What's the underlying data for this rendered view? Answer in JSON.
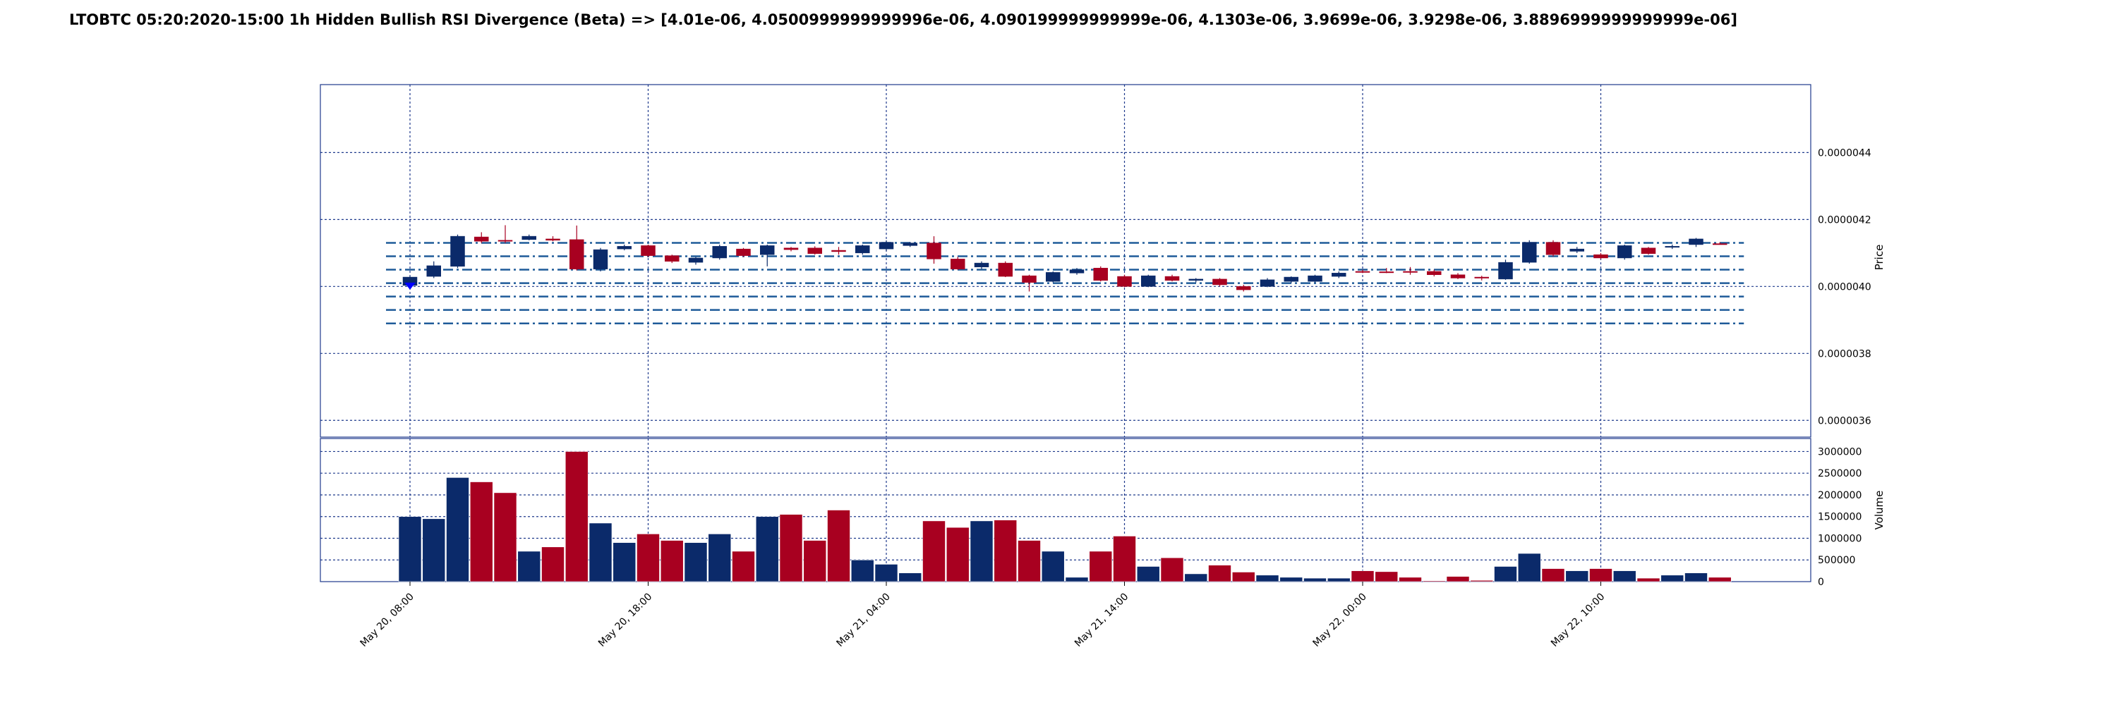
{
  "chart_data": {
    "title": "LTOBTC 05:20:2020-15:00 1h Hidden Bullish RSI Divergence (Beta) => [4.01e-06, 4.0500999999999996e-06, 4.090199999999999e-06, 4.1303e-06, 3.9699e-06, 3.9298e-06, 3.8896999999999999e-06]",
    "type": "candlestick",
    "interval": "1h",
    "colors": {
      "up": "#0b2a6a",
      "down": "#a80020",
      "grid": "#1f3a8c",
      "level_line": "#1f5b99",
      "marker": "#0000ff"
    },
    "price_panel": {
      "ylabel": "Price",
      "ylim": [
        3.55e-06,
        4.603e-06
      ],
      "ticks": [
        "0.0000036",
        "0.0000038",
        "0.0000040",
        "0.0000042",
        "0.0000044"
      ],
      "tick_values": [
        3.6e-06,
        3.8e-06,
        4e-06,
        4.2e-06,
        4.4e-06
      ],
      "level_lines": [
        4.01e-06,
        4.0501e-06,
        4.0902e-06,
        4.1303e-06,
        3.9699e-06,
        3.9298e-06,
        3.8897e-06
      ],
      "marker": {
        "index": 0,
        "price": 4.003e-06
      }
    },
    "volume_panel": {
      "ylabel": "Volume",
      "ylim": [
        0,
        3300000
      ],
      "ticks": [
        "0",
        "500000",
        "1000000",
        "1500000",
        "2000000",
        "2500000",
        "3000000"
      ],
      "tick_values": [
        0,
        500000,
        1000000,
        1500000,
        2000000,
        2500000,
        3000000
      ]
    },
    "x_ticks": [
      {
        "index": 0,
        "label": "May 20, 08:00"
      },
      {
        "index": 10,
        "label": "May 20, 18:00"
      },
      {
        "index": 20,
        "label": "May 21, 04:00"
      },
      {
        "index": 30,
        "label": "May 21, 14:00"
      },
      {
        "index": 40,
        "label": "May 22, 00:00"
      },
      {
        "index": 50,
        "label": "May 22, 10:00"
      }
    ],
    "candles": [
      {
        "o": 4.003e-06,
        "h": 4.03e-06,
        "l": 3.998e-06,
        "c": 4.028e-06,
        "v": 1500000
      },
      {
        "o": 4.03e-06,
        "h": 4.075e-06,
        "l": 4.025e-06,
        "c": 4.062e-06,
        "v": 1450000
      },
      {
        "o": 4.06e-06,
        "h": 4.155e-06,
        "l": 4.055e-06,
        "c": 4.15e-06,
        "v": 2400000
      },
      {
        "o": 4.148e-06,
        "h": 4.162e-06,
        "l": 4.13e-06,
        "c": 4.135e-06,
        "v": 2300000
      },
      {
        "o": 4.138e-06,
        "h": 4.183e-06,
        "l": 4.13e-06,
        "c": 4.136e-06,
        "v": 2050000
      },
      {
        "o": 4.14e-06,
        "h": 4.155e-06,
        "l": 4.138e-06,
        "c": 4.15e-06,
        "v": 700000
      },
      {
        "o": 4.142e-06,
        "h": 4.15e-06,
        "l": 4.135e-06,
        "c": 4.138e-06,
        "v": 800000
      },
      {
        "o": 4.14e-06,
        "h": 4.182e-06,
        "l": 4.048e-06,
        "c": 4.052e-06,
        "v": 3000000
      },
      {
        "o": 4.052e-06,
        "h": 4.115e-06,
        "l": 4.045e-06,
        "c": 4.11e-06,
        "v": 1350000
      },
      {
        "o": 4.112e-06,
        "h": 4.125e-06,
        "l": 4.108e-06,
        "c": 4.12e-06,
        "v": 900000
      },
      {
        "o": 4.122e-06,
        "h": 4.125e-06,
        "l": 4.088e-06,
        "c": 4.092e-06,
        "v": 1100000
      },
      {
        "o": 4.092e-06,
        "h": 4.095e-06,
        "l": 4.07e-06,
        "c": 4.075e-06,
        "v": 950000
      },
      {
        "o": 4.072e-06,
        "h": 4.088e-06,
        "l": 4.065e-06,
        "c": 4.085e-06,
        "v": 900000
      },
      {
        "o": 4.085e-06,
        "h": 4.125e-06,
        "l": 4.08e-06,
        "c": 4.12e-06,
        "v": 1100000
      },
      {
        "o": 4.112e-06,
        "h": 4.115e-06,
        "l": 4.088e-06,
        "c": 4.092e-06,
        "v": 700000
      },
      {
        "o": 4.095e-06,
        "h": 4.125e-06,
        "l": 4.06e-06,
        "c": 4.122e-06,
        "v": 1500000
      },
      {
        "o": 4.115e-06,
        "h": 4.118e-06,
        "l": 4.105e-06,
        "c": 4.11e-06,
        "v": 1550000
      },
      {
        "o": 4.115e-06,
        "h": 4.12e-06,
        "l": 4.095e-06,
        "c": 4.098e-06,
        "v": 950000
      },
      {
        "o": 4.108e-06,
        "h": 4.118e-06,
        "l": 4.095e-06,
        "c": 4.104e-06,
        "v": 1650000
      },
      {
        "o": 4.1e-06,
        "h": 4.125e-06,
        "l": 4.095e-06,
        "c": 4.122e-06,
        "v": 500000
      },
      {
        "o": 4.112e-06,
        "h": 4.138e-06,
        "l": 4.105e-06,
        "c": 4.132e-06,
        "v": 400000
      },
      {
        "o": 4.122e-06,
        "h": 4.133e-06,
        "l": 4.118e-06,
        "c": 4.13e-06,
        "v": 200000
      },
      {
        "o": 4.13e-06,
        "h": 4.15e-06,
        "l": 4.068e-06,
        "c": 4.082e-06,
        "v": 1400000
      },
      {
        "o": 4.082e-06,
        "h": 4.088e-06,
        "l": 4.05e-06,
        "c": 4.052e-06,
        "v": 1250000
      },
      {
        "o": 4.058e-06,
        "h": 4.075e-06,
        "l": 4.052e-06,
        "c": 4.07e-06,
        "v": 1400000
      },
      {
        "o": 4.07e-06,
        "h": 4.075e-06,
        "l": 4.028e-06,
        "c": 4.03e-06,
        "v": 1420000
      },
      {
        "o": 4.032e-06,
        "h": 4.035e-06,
        "l": 3.985e-06,
        "c": 4.012e-06,
        "v": 950000
      },
      {
        "o": 4.015e-06,
        "h": 4.045e-06,
        "l": 4.012e-06,
        "c": 4.042e-06,
        "v": 700000
      },
      {
        "o": 4.04e-06,
        "h": 4.055e-06,
        "l": 4.035e-06,
        "c": 4.05e-06,
        "v": 100000
      },
      {
        "o": 4.055e-06,
        "h": 4.06e-06,
        "l": 4.015e-06,
        "c": 4.018e-06,
        "v": 700000
      },
      {
        "o": 4.03e-06,
        "h": 4.035e-06,
        "l": 3.998e-06,
        "c": 4e-06,
        "v": 1050000
      },
      {
        "o": 4e-06,
        "h": 4.035e-06,
        "l": 3.998e-06,
        "c": 4.032e-06,
        "v": 350000
      },
      {
        "o": 4.03e-06,
        "h": 4.035e-06,
        "l": 4.015e-06,
        "c": 4.018e-06,
        "v": 550000
      },
      {
        "o": 4.018e-06,
        "h": 4.025e-06,
        "l": 4.012e-06,
        "c": 4.022e-06,
        "v": 180000
      },
      {
        "o": 4.022e-06,
        "h": 4.025e-06,
        "l": 4e-06,
        "c": 4.005e-06,
        "v": 380000
      },
      {
        "o": 4e-06,
        "h": 4.005e-06,
        "l": 3.985e-06,
        "c": 3.99e-06,
        "v": 220000
      },
      {
        "o": 4e-06,
        "h": 4.025e-06,
        "l": 3.998e-06,
        "c": 4.02e-06,
        "v": 150000
      },
      {
        "o": 4.015e-06,
        "h": 4.03e-06,
        "l": 4.01e-06,
        "c": 4.028e-06,
        "v": 100000
      },
      {
        "o": 4.015e-06,
        "h": 4.035e-06,
        "l": 4.012e-06,
        "c": 4.032e-06,
        "v": 80000
      },
      {
        "o": 4.03e-06,
        "h": 4.045e-06,
        "l": 4.025e-06,
        "c": 4.04e-06,
        "v": 80000
      },
      {
        "o": 4.045e-06,
        "h": 4.05e-06,
        "l": 4.04e-06,
        "c": 4.044e-06,
        "v": 250000
      },
      {
        "o": 4.044e-06,
        "h": 4.055e-06,
        "l": 4.04e-06,
        "c": 4.043e-06,
        "v": 230000
      },
      {
        "o": 4.045e-06,
        "h": 4.058e-06,
        "l": 4.035e-06,
        "c": 4.043e-06,
        "v": 100000
      },
      {
        "o": 4.045e-06,
        "h": 4.05e-06,
        "l": 4.03e-06,
        "c": 4.035e-06,
        "v": 20000
      },
      {
        "o": 4.035e-06,
        "h": 4.04e-06,
        "l": 4.022e-06,
        "c": 4.025e-06,
        "v": 120000
      },
      {
        "o": 4.028e-06,
        "h": 4.032e-06,
        "l": 4.018e-06,
        "c": 4.027e-06,
        "v": 30000
      },
      {
        "o": 4.022e-06,
        "h": 4.08e-06,
        "l": 4.02e-06,
        "c": 4.072e-06,
        "v": 350000
      },
      {
        "o": 4.072e-06,
        "h": 4.138e-06,
        "l": 4.068e-06,
        "c": 4.132e-06,
        "v": 650000
      },
      {
        "o": 4.132e-06,
        "h": 4.138e-06,
        "l": 4.09e-06,
        "c": 4.095e-06,
        "v": 300000
      },
      {
        "o": 4.105e-06,
        "h": 4.118e-06,
        "l": 4.1e-06,
        "c": 4.112e-06,
        "v": 250000
      },
      {
        "o": 4.095e-06,
        "h": 4.1e-06,
        "l": 4.082e-06,
        "c": 4.085e-06,
        "v": 300000
      },
      {
        "o": 4.085e-06,
        "h": 4.125e-06,
        "l": 4.08e-06,
        "c": 4.122e-06,
        "v": 250000
      },
      {
        "o": 4.115e-06,
        "h": 4.118e-06,
        "l": 4.095e-06,
        "c": 4.098e-06,
        "v": 80000
      },
      {
        "o": 4.118e-06,
        "h": 4.125e-06,
        "l": 4.112e-06,
        "c": 4.12e-06,
        "v": 150000
      },
      {
        "o": 4.125e-06,
        "h": 4.145e-06,
        "l": 4.118e-06,
        "c": 4.142e-06,
        "v": 200000
      },
      {
        "o": 4.128e-06,
        "h": 4.132e-06,
        "l": 4.125e-06,
        "c": 4.127e-06,
        "v": 100000
      }
    ]
  }
}
